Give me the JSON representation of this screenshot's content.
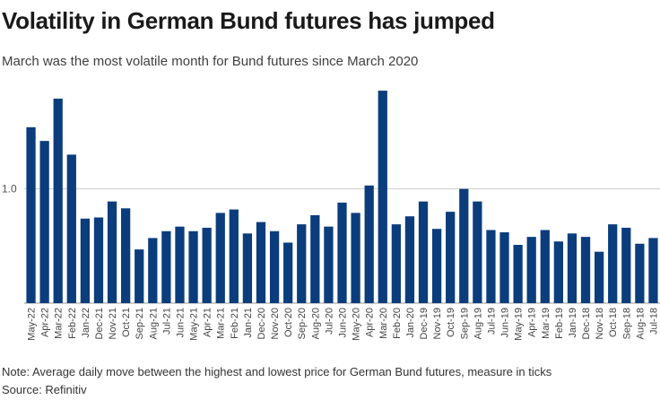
{
  "chart_data": {
    "type": "bar",
    "title": "Volatility in German Bund futures has jumped",
    "subtitle": "March was the most volatile month for Bund futures since March 2020",
    "note": "Note: Average daily move between the highest and lowest price for German Bund futures, measure in ticks",
    "source": "Source: Refinitiv",
    "color": "#0b3d7d",
    "gridline_color": "#cccccc",
    "ylim": [
      0,
      1.9
    ],
    "yticks": [
      {
        "value": 1.0,
        "label": "1.0"
      }
    ],
    "categories": [
      "May-22",
      "Apr-22",
      "Mar-22",
      "Feb-22",
      "Jan-22",
      "Dec-21",
      "Nov-21",
      "Oct-21",
      "Sep-21",
      "Aug-21",
      "Jul-21",
      "Jun-21",
      "May-21",
      "Apr-21",
      "Mar-21",
      "Feb-21",
      "Jan-21",
      "Dec-20",
      "Nov-20",
      "Oct-20",
      "Sep-20",
      "Aug-20",
      "Jul-20",
      "Jun-20",
      "May-20",
      "Apr-20",
      "Mar-20",
      "Feb-20",
      "Jan-20",
      "Dec-19",
      "Nov-19",
      "Oct-19",
      "Sep-19",
      "Aug-19",
      "Jul-19",
      "Jun-19",
      "May-19",
      "Apr-19",
      "Mar-19",
      "Feb-19",
      "Jan-19",
      "Dec-18",
      "Nov-18",
      "Oct-18",
      "Sep-18",
      "Aug-18",
      "Jul-18"
    ],
    "values": [
      1.54,
      1.42,
      1.79,
      1.3,
      0.74,
      0.75,
      0.89,
      0.83,
      0.47,
      0.57,
      0.63,
      0.67,
      0.63,
      0.66,
      0.79,
      0.82,
      0.61,
      0.71,
      0.63,
      0.53,
      0.69,
      0.77,
      0.67,
      0.88,
      0.79,
      1.03,
      1.86,
      0.69,
      0.76,
      0.89,
      0.65,
      0.8,
      1.0,
      0.89,
      0.64,
      0.62,
      0.51,
      0.58,
      0.64,
      0.54,
      0.61,
      0.58,
      0.45,
      0.69,
      0.66,
      0.52,
      0.57
    ]
  }
}
